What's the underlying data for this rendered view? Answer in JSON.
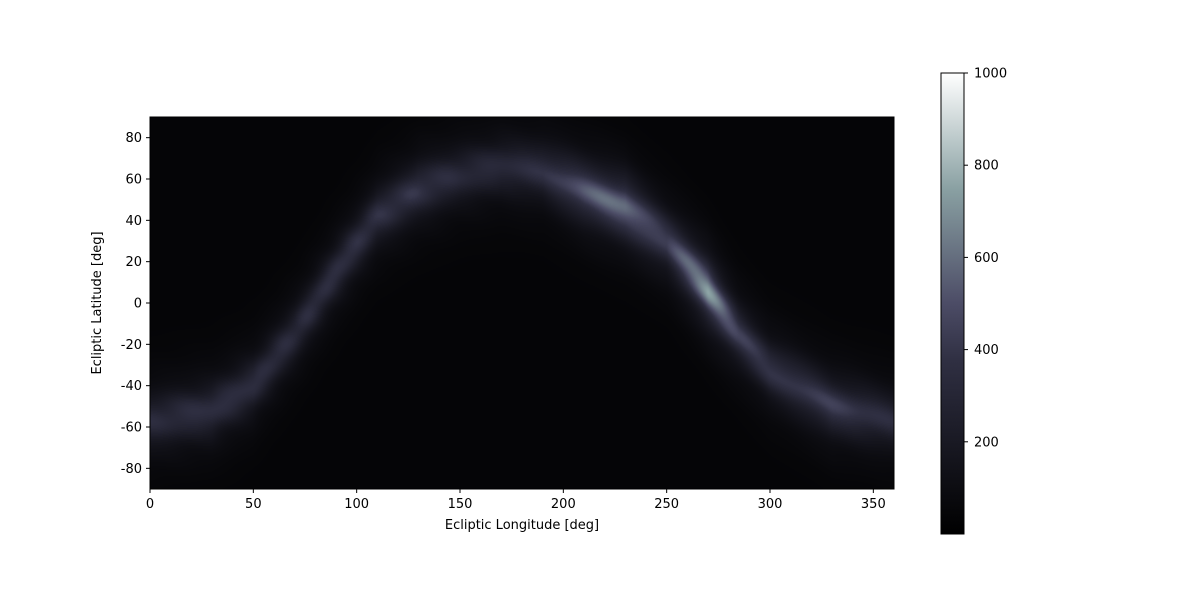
{
  "chart_data": {
    "type": "heatmap",
    "title": "",
    "xlabel": "Ecliptic Longitude [deg]",
    "ylabel": "Ecliptic Latitude [deg]",
    "xlim": [
      0,
      360
    ],
    "ylim": [
      -90,
      90
    ],
    "xticks": [
      0,
      50,
      100,
      150,
      200,
      250,
      300,
      350
    ],
    "yticks": [
      -80,
      -60,
      -40,
      -20,
      0,
      20,
      40,
      60,
      80
    ],
    "colormap": "bone",
    "colorbar": {
      "range": [
        0,
        1000
      ],
      "ticks": [
        200,
        400,
        600,
        800,
        1000
      ]
    },
    "background_level": 40,
    "band_profile": [
      {
        "lon": 0,
        "lat": -57,
        "peak": 330
      },
      {
        "lon": 30,
        "lat": -52,
        "peak": 360
      },
      {
        "lon": 50,
        "lat": -40,
        "peak": 350
      },
      {
        "lon": 70,
        "lat": -15,
        "peak": 330
      },
      {
        "lon": 90,
        "lat": 15,
        "peak": 360
      },
      {
        "lon": 110,
        "lat": 42,
        "peak": 360
      },
      {
        "lon": 130,
        "lat": 55,
        "peak": 380
      },
      {
        "lon": 150,
        "lat": 62,
        "peak": 320
      },
      {
        "lon": 170,
        "lat": 66,
        "peak": 320
      },
      {
        "lon": 190,
        "lat": 64,
        "peak": 360
      },
      {
        "lon": 210,
        "lat": 54,
        "peak": 520
      },
      {
        "lon": 230,
        "lat": 46,
        "peak": 600
      },
      {
        "lon": 250,
        "lat": 30,
        "peak": 430
      },
      {
        "lon": 270,
        "lat": 6,
        "peak": 700
      },
      {
        "lon": 285,
        "lat": -15,
        "peak": 420
      },
      {
        "lon": 300,
        "lat": -32,
        "peak": 380
      },
      {
        "lon": 330,
        "lat": -50,
        "peak": 420
      },
      {
        "lon": 360,
        "lat": -57,
        "peak": 330
      }
    ]
  }
}
